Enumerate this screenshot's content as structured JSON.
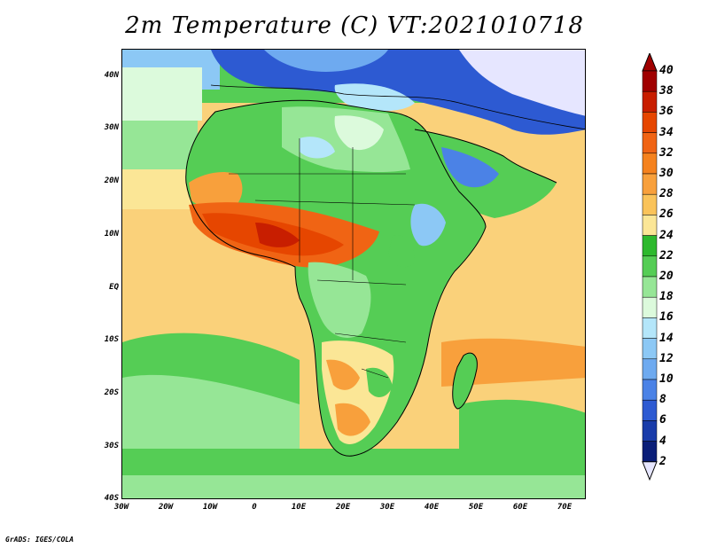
{
  "title": "2m Temperature (C) VT:2021010718",
  "credit": "GrADS: IGES/COLA",
  "lat_labels": [
    "40N",
    "30N",
    "20N",
    "10N",
    "EQ",
    "10S",
    "20S",
    "30S",
    "40S"
  ],
  "lon_labels": [
    "30W",
    "20W",
    "10W",
    "0",
    "10E",
    "20E",
    "30E",
    "40E",
    "50E",
    "60E",
    "70E"
  ],
  "colorbar": {
    "labels": [
      "40",
      "38",
      "36",
      "34",
      "32",
      "30",
      "28",
      "26",
      "24",
      "22",
      "20",
      "18",
      "16",
      "14",
      "12",
      "10",
      "8",
      "6",
      "4",
      "2"
    ],
    "colors": [
      "#a00000",
      "#c81e00",
      "#e64600",
      "#f06414",
      "#f5821e",
      "#f8a03c",
      "#fac35a",
      "#fbe696",
      "#2db92d",
      "#55cd55",
      "#96e696",
      "#dcfadc",
      "#b4e6fa",
      "#8cc8f5",
      "#6eaaf0",
      "#4b82e6",
      "#2d5ad2",
      "#193caa",
      "#0a1e78"
    ],
    "top_triangle": "#a00000",
    "bottom_triangle": "#e6e6ff"
  },
  "chart_data": {
    "type": "heatmap",
    "title": "2m Temperature (C) VT:2021010718",
    "xlim": [
      -30,
      75
    ],
    "ylim": [
      -40,
      45
    ],
    "unit": "C",
    "levels": [
      2,
      4,
      6,
      8,
      10,
      12,
      14,
      16,
      18,
      20,
      22,
      24,
      26,
      28,
      30,
      32,
      34,
      36,
      38,
      40
    ]
  }
}
